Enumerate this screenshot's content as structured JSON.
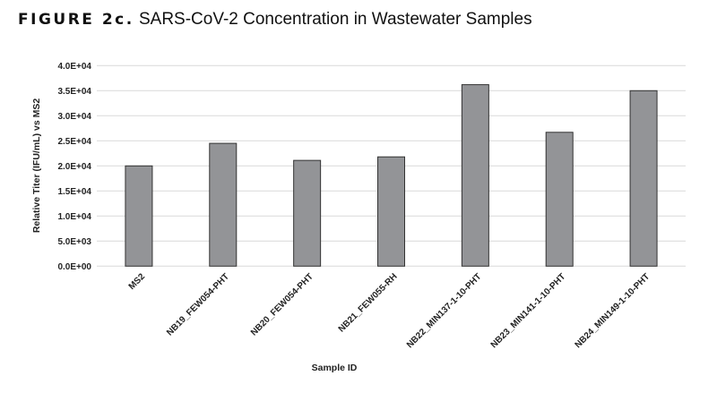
{
  "figure": {
    "label": "FIGURE 2c.",
    "title": "SARS-CoV-2 Concentration in Wastewater Samples"
  },
  "chart_data": {
    "type": "bar",
    "title": "SARS-CoV-2 Concentration in Wastewater Samples",
    "xlabel": "Sample ID",
    "ylabel": "Relative Titer (IFU/mL) vs MS2",
    "categories": [
      "MS2",
      "NB19_FEW054-PHT",
      "NB20_FEW054-PHT",
      "NB21_FEW055-RH",
      "NB22_MIN137-1-10-PHT",
      "NB23_MIN141-1-10-PHT",
      "NB24_MIN149-1-10-PHT"
    ],
    "values": [
      20000,
      24500,
      21100,
      21800,
      36200,
      26700,
      35000
    ],
    "ylim": [
      0,
      40000
    ],
    "yticks": [
      0,
      5000,
      10000,
      15000,
      20000,
      25000,
      30000,
      35000,
      40000
    ],
    "ytick_labels": [
      "0.0E+00",
      "5.0E+03",
      "1.0E+04",
      "1.5E+04",
      "2.0E+04",
      "2.5E+04",
      "3.0E+04",
      "3.5E+04",
      "4.0E+04"
    ],
    "grid": true,
    "legend": "none",
    "bar_color": "#939497",
    "bar_edge_color": "#333333"
  }
}
